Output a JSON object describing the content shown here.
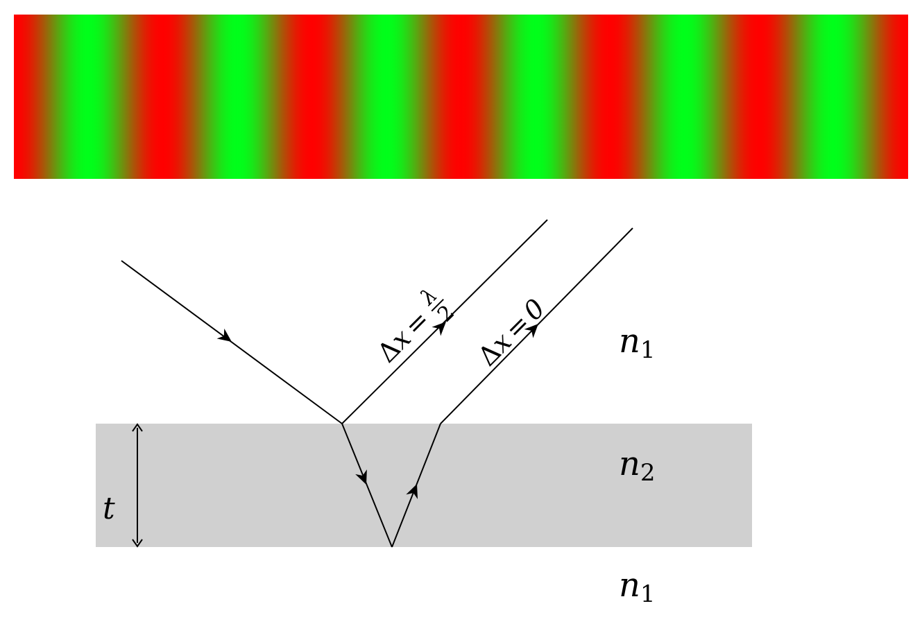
{
  "fringe_strip": {
    "color_a": "#ff0000",
    "color_b": "#00ff1a",
    "period_count": 6
  },
  "film": {
    "fill_color": "#d0d0d0",
    "thickness_label": "t"
  },
  "media": {
    "top": {
      "symbol": "n",
      "subscript": "1"
    },
    "film": {
      "symbol": "n",
      "subscript": "2"
    },
    "bottom": {
      "symbol": "n",
      "subscript": "1"
    }
  },
  "path_labels": {
    "first_reflection": {
      "delta": "Δ",
      "variable": "x",
      "equals": "=",
      "numerator": "λ",
      "denominator": "2"
    },
    "second_reflection": {
      "delta": "Δ",
      "variable": "x",
      "equals": "=",
      "value": "0"
    }
  }
}
